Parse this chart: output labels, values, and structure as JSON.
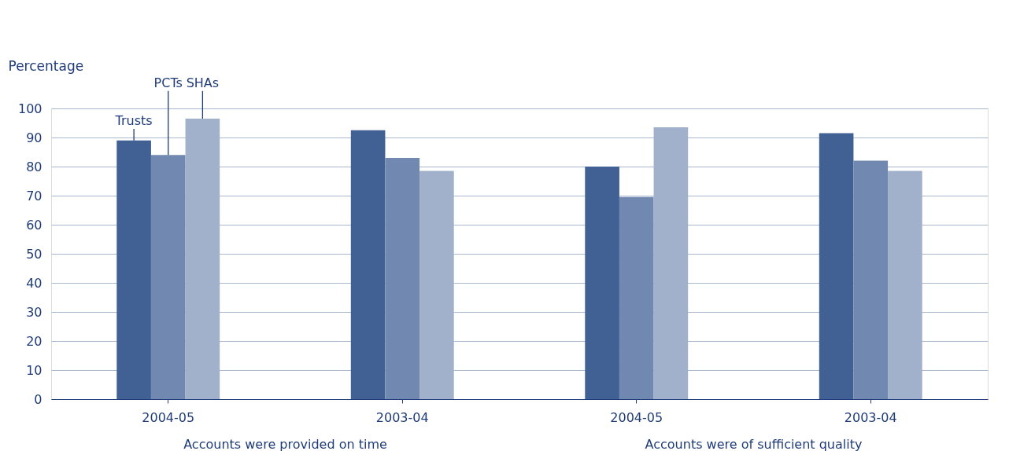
{
  "chart_data": {
    "type": "bar",
    "ylabel": "Percentage",
    "categories": [
      "2004-05",
      "2003-04",
      "2004-05",
      "2003-04"
    ],
    "series": [
      {
        "name": "Trusts",
        "color": "#416194",
        "values": [
          89,
          92.5,
          80,
          91.5
        ]
      },
      {
        "name": "PCTs",
        "color": "#7189b0",
        "values": [
          84,
          83,
          69.5,
          82
        ]
      },
      {
        "name": "SHAs",
        "color": "#a1b1cb",
        "values": [
          96.5,
          78.5,
          93.5,
          78.5
        ]
      }
    ],
    "ylim": [
      0,
      100
    ],
    "yticks": [
      0,
      10,
      20,
      30,
      40,
      50,
      60,
      70,
      80,
      90,
      100
    ],
    "grid": "y",
    "legend": false,
    "annotations": [
      "Accounts were provided on time",
      "Accounts were of sufficient quality"
    ]
  }
}
